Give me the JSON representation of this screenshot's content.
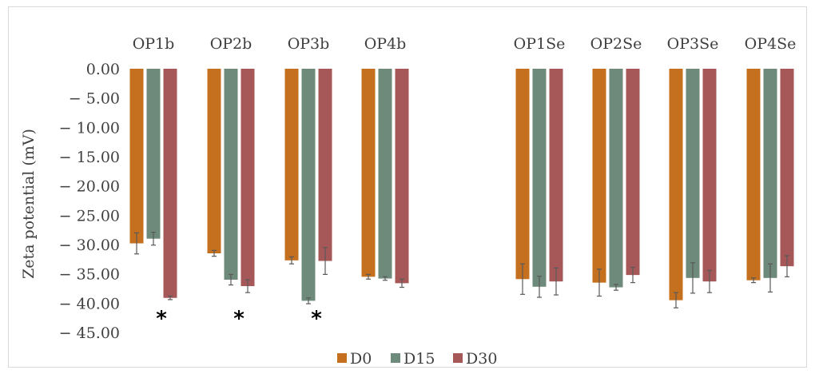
{
  "chart_data": {
    "type": "bar",
    "title": "",
    "ylabel": "Zeta potential (mV)",
    "xlabel": "",
    "ylim": [
      -45,
      0
    ],
    "yticks": [
      0,
      -5,
      -10,
      -15,
      -20,
      -25,
      -30,
      -35,
      -40,
      -45
    ],
    "ytick_labels": [
      "0.00",
      "− 5.00",
      "− 10.00",
      "− 15.00",
      "− 20.00",
      "− 25.00",
      "− 30.00",
      "− 35.00",
      "− 40.00",
      "− 45.00"
    ],
    "categories": [
      "OP1b",
      "OP2b",
      "OP3b",
      "OP4b",
      "OP1Se",
      "OP2Se",
      "OP3Se",
      "OP4Se"
    ],
    "series": [
      {
        "name": "D0",
        "color": "#c5701f",
        "values": [
          -29.8,
          -31.5,
          -32.7,
          -35.5,
          -35.9,
          -36.5,
          -39.5,
          -36.1
        ],
        "errors": [
          1.8,
          0.5,
          0.6,
          0.4,
          2.6,
          2.3,
          1.3,
          0.4
        ]
      },
      {
        "name": "D15",
        "color": "#6e8a7a",
        "values": [
          -29.0,
          -36.0,
          -39.6,
          -35.8,
          -37.2,
          -37.3,
          -35.7,
          -35.7
        ],
        "errors": [
          1.1,
          0.9,
          0.5,
          0.3,
          1.8,
          0.5,
          2.6,
          2.4
        ]
      },
      {
        "name": "D30",
        "color": "#a65757",
        "values": [
          -39.1,
          -37.1,
          -32.8,
          -36.6,
          -36.3,
          -35.2,
          -36.3,
          -33.7
        ],
        "errors": [
          0.3,
          1.1,
          2.3,
          0.7,
          2.3,
          1.3,
          1.9,
          1.8
        ]
      }
    ],
    "annotations": [
      {
        "text": "*",
        "category": "OP1b"
      },
      {
        "text": "*",
        "category": "OP2b"
      },
      {
        "text": "*",
        "category": "OP3b"
      }
    ],
    "grid": false,
    "legend": {
      "position": "bottom",
      "items": [
        "D0",
        "D15",
        "D30"
      ]
    }
  }
}
